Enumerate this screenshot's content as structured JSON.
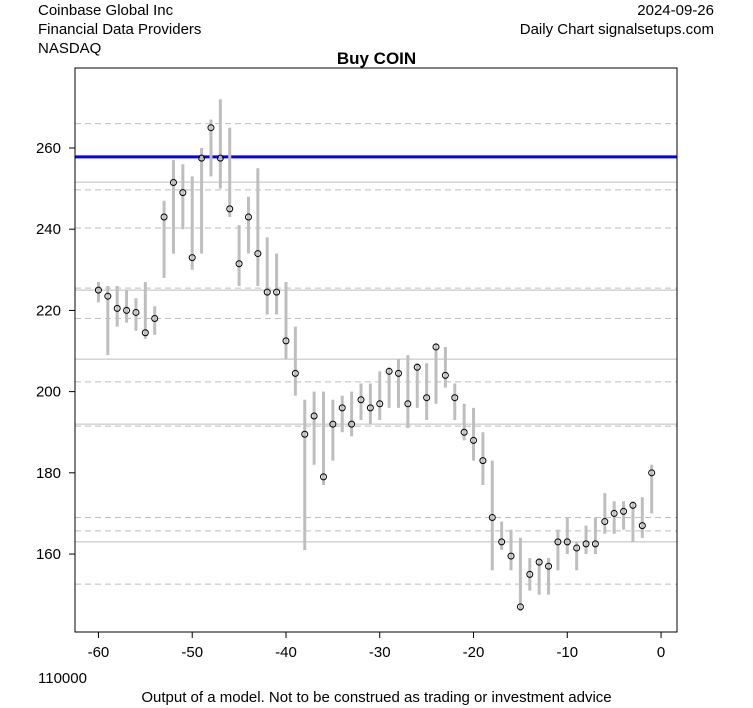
{
  "header": {
    "company": "Coinbase Global Inc",
    "provider": "Financial Data Providers",
    "exchange": "NASDAQ",
    "date": "2024-09-26",
    "source": "Daily Chart signalsetups.com"
  },
  "footer": {
    "volume_label": "110000",
    "disclaimer": "Output of a model. Not to be construed as trading or investment advice"
  },
  "chart_data": {
    "type": "range-bar",
    "title": "Buy COIN",
    "xlabel": "",
    "ylabel": "",
    "xlim": [
      -62.5,
      1.7
    ],
    "ylim": [
      140.8,
      279.7
    ],
    "xticks": [
      -60,
      -50,
      -40,
      -30,
      -20,
      -10,
      0
    ],
    "yticks": [
      160,
      180,
      200,
      220,
      240,
      260
    ],
    "signal_line": {
      "value": 257.8,
      "color": "#0000ff"
    },
    "solid_levels": [
      251.6,
      225,
      208,
      192,
      163
    ],
    "dashed_levels": [
      266,
      249.7,
      240.3,
      225.5,
      218,
      202.4,
      191.5,
      169,
      165.7,
      152.6
    ],
    "bar_color": "#bebebe",
    "x": [
      -60,
      -59,
      -58,
      -57,
      -56,
      -55,
      -54,
      -53,
      -52,
      -51,
      -50,
      -49,
      -48,
      -47,
      -46,
      -45,
      -44,
      -43,
      -42,
      -41,
      -40,
      -39,
      -38,
      -37,
      -36,
      -35,
      -34,
      -33,
      -32,
      -31,
      -30,
      -29,
      -28,
      -27,
      -26,
      -25,
      -24,
      -23,
      -22,
      -21,
      -20,
      -19,
      -18,
      -17,
      -16,
      -15,
      -14,
      -13,
      -12,
      -11,
      -10,
      -9,
      -8,
      -7,
      -6,
      -5,
      -4,
      -3,
      -2,
      -1
    ],
    "low": [
      222,
      209,
      216,
      217,
      215,
      213,
      214,
      228,
      234,
      240,
      230,
      234,
      253,
      250,
      243,
      226,
      234,
      226,
      219,
      219,
      208,
      199,
      161,
      182,
      177,
      183,
      190,
      189,
      193,
      192,
      193,
      196,
      196,
      191,
      196,
      193,
      197,
      201,
      193,
      188,
      183,
      177,
      156,
      161,
      156,
      146,
      151,
      150,
      150,
      156,
      160,
      156,
      160,
      160,
      165,
      165,
      166,
      163,
      164,
      170
    ],
    "high": [
      227,
      226,
      226,
      225,
      223,
      227,
      221,
      247,
      257,
      256,
      253,
      260,
      267,
      272,
      265,
      241,
      248,
      255,
      238,
      234,
      227,
      216,
      198,
      200,
      200,
      198,
      199,
      200,
      202,
      202,
      205,
      206,
      208,
      209,
      207,
      207,
      212,
      211,
      202,
      197,
      196,
      190,
      183,
      168,
      166,
      164,
      159,
      159,
      159,
      166,
      169,
      163,
      167,
      169,
      175,
      173,
      173,
      173,
      174,
      182
    ],
    "close": [
      225,
      223.5,
      220.5,
      220,
      219.5,
      214.5,
      218,
      243,
      251.5,
      249,
      233,
      257.5,
      265,
      257.5,
      245,
      231.5,
      243,
      234,
      224.5,
      224.5,
      212.5,
      204.5,
      189.5,
      194,
      179,
      192,
      196,
      192,
      198,
      196,
      197,
      205,
      204.5,
      197,
      206,
      198.5,
      211,
      204,
      198.5,
      190,
      188,
      183,
      169,
      163,
      159.5,
      147,
      155,
      158,
      157,
      163,
      163,
      161.5,
      162.5,
      162.5,
      168,
      170,
      170.5,
      172,
      167,
      180
    ]
  }
}
